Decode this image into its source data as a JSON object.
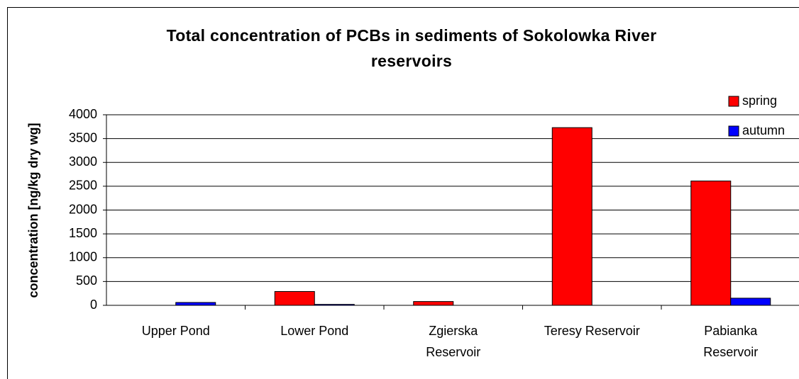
{
  "chart_data": {
    "type": "bar",
    "title": "Total concentration of PCBs in sediments of Sokolowka River reservoirs",
    "y_label": "concentration [ng/kg dry wg]",
    "categories": [
      "Upper Pond",
      "Lower Pond",
      "Zgierska Reservoir",
      "Teresy Reservoir",
      "Pabianka Reservoir"
    ],
    "series": [
      {
        "name": "spring",
        "color": "#ff0000",
        "values": [
          0,
          290,
          80,
          3730,
          2610
        ]
      },
      {
        "name": "autumn",
        "color": "#0000ff",
        "values": [
          60,
          20,
          0,
          0,
          150
        ]
      }
    ],
    "ylim": [
      0,
      4000
    ],
    "yticks": [
      0,
      500,
      1000,
      1500,
      2000,
      2500,
      3000,
      3500,
      4000
    ],
    "grid": true,
    "legend": "top-right"
  }
}
